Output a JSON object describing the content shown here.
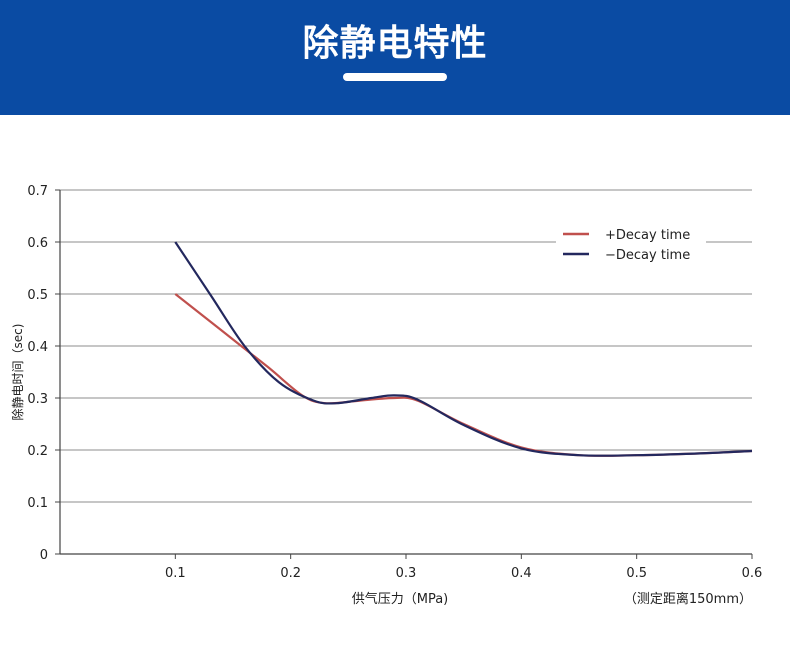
{
  "header": {
    "title": "除静电特性",
    "background_color": "#0a4ba3",
    "text_color": "#ffffff"
  },
  "chart_data": {
    "type": "line",
    "title": "",
    "xlabel": "供气压力（MPa)",
    "ylabel": "除静电时间（sec)",
    "note": "（测定距离150mm）",
    "xlim": [
      0,
      0.6
    ],
    "ylim": [
      0,
      0.7
    ],
    "x_ticks": [
      "0.1",
      "0.2",
      "0.3",
      "0.4",
      "0.5",
      "0.6"
    ],
    "y_ticks": [
      "0",
      "0.1",
      "0.2",
      "0.3",
      "0.4",
      "0.5",
      "0.6",
      "0.7"
    ],
    "grid": "horizontal",
    "legend_position": "top-right",
    "series": [
      {
        "name": "+Decay time",
        "color": "#c0504d",
        "points": [
          [
            0.1,
            0.5
          ],
          [
            0.14,
            0.43
          ],
          [
            0.18,
            0.36
          ],
          [
            0.21,
            0.305
          ],
          [
            0.23,
            0.29
          ],
          [
            0.26,
            0.295
          ],
          [
            0.29,
            0.3
          ],
          [
            0.31,
            0.295
          ],
          [
            0.35,
            0.25
          ],
          [
            0.4,
            0.205
          ],
          [
            0.45,
            0.19
          ],
          [
            0.5,
            0.19
          ],
          [
            0.55,
            0.193
          ],
          [
            0.6,
            0.198
          ]
        ]
      },
      {
        "name": "−Decay time",
        "color": "#23285e",
        "points": [
          [
            0.1,
            0.6
          ],
          [
            0.13,
            0.5
          ],
          [
            0.16,
            0.4
          ],
          [
            0.19,
            0.33
          ],
          [
            0.22,
            0.295
          ],
          [
            0.24,
            0.29
          ],
          [
            0.27,
            0.3
          ],
          [
            0.29,
            0.305
          ],
          [
            0.31,
            0.297
          ],
          [
            0.35,
            0.248
          ],
          [
            0.4,
            0.203
          ],
          [
            0.45,
            0.19
          ],
          [
            0.5,
            0.19
          ],
          [
            0.55,
            0.193
          ],
          [
            0.6,
            0.198
          ]
        ]
      }
    ]
  }
}
